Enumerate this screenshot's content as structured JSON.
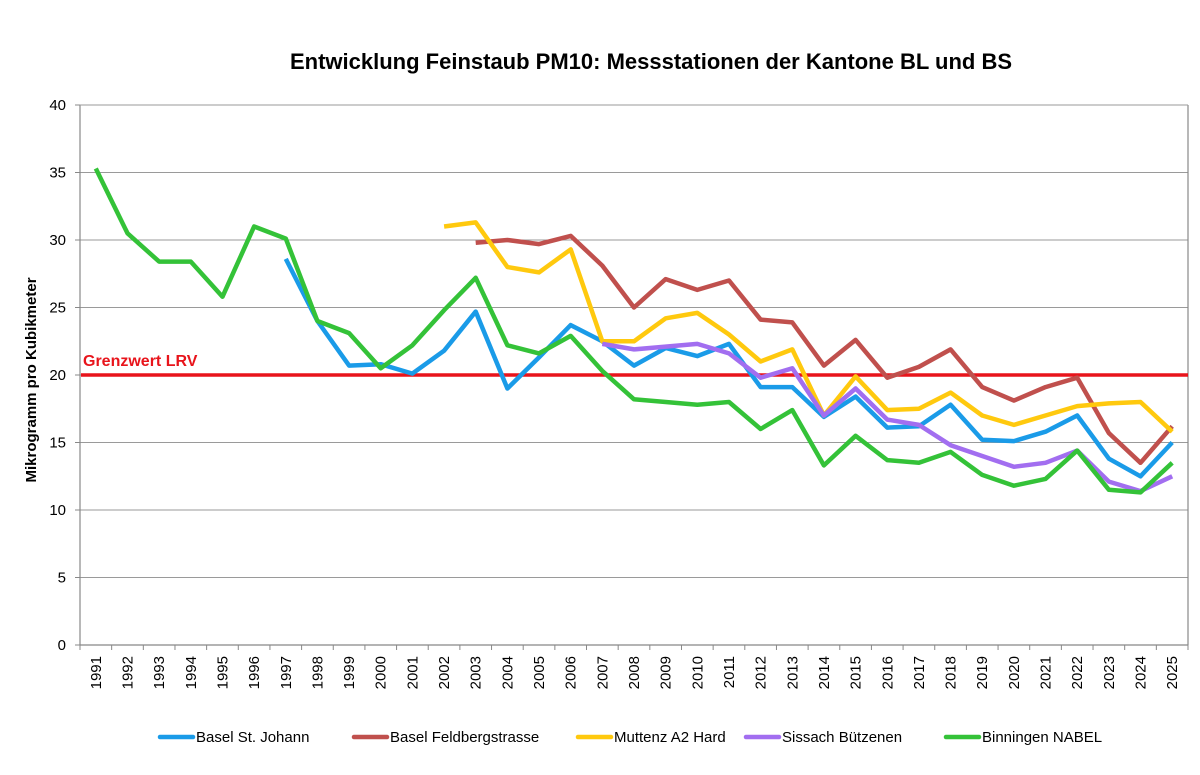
{
  "chart_data": {
    "type": "line",
    "title": "Entwicklung Feinstaub PM10: Messstationen der Kantone BL und BS",
    "xlabel": "",
    "ylabel": "Mikrogramm pro Kubikmeter",
    "ylim": [
      0,
      40
    ],
    "yticks": [
      0,
      5,
      10,
      15,
      20,
      25,
      30,
      35,
      40
    ],
    "ytick_labels": [
      "0",
      "5",
      "10",
      "15",
      "20",
      "25",
      "30",
      "35",
      "40"
    ],
    "grid": true,
    "legend_position": "bottom",
    "categories": [
      "1991",
      "1992",
      "1993",
      "1994",
      "1995",
      "1996",
      "1997",
      "1998",
      "1999",
      "2000",
      "2001",
      "2002",
      "2003",
      "2004",
      "2005",
      "2006",
      "2007",
      "2008",
      "2009",
      "2010",
      "2011",
      "2012",
      "2013",
      "2014",
      "2015",
      "2016",
      "2017",
      "2018",
      "2019",
      "2020",
      "2021",
      "2022",
      "2023",
      "2024",
      "2025"
    ],
    "reference_line": {
      "label": "Grenzwert LRV",
      "value": 20,
      "color": "#e8141b"
    },
    "series": [
      {
        "name": "Basel St. Johann",
        "color": "#1a9be8",
        "values": [
          null,
          null,
          null,
          null,
          null,
          null,
          28.6,
          24.0,
          20.7,
          20.8,
          20.1,
          21.8,
          24.7,
          19.0,
          21.3,
          23.7,
          22.5,
          20.7,
          22.0,
          21.4,
          22.3,
          19.1,
          19.1,
          16.9,
          18.4,
          16.1,
          16.2,
          17.8,
          15.2,
          15.1,
          15.8,
          17.0,
          13.8,
          12.5,
          15.0
        ]
      },
      {
        "name": "Basel Feldbergstrasse",
        "color": "#c0504d",
        "values": [
          null,
          null,
          null,
          null,
          null,
          null,
          null,
          null,
          null,
          null,
          null,
          null,
          29.8,
          30.0,
          29.7,
          30.3,
          28.1,
          25.0,
          27.1,
          26.3,
          27.0,
          24.1,
          23.9,
          20.7,
          22.6,
          19.8,
          20.6,
          21.9,
          19.1,
          18.1,
          19.1,
          19.8,
          15.7,
          13.5,
          16.2
        ]
      },
      {
        "name": "Muttenz A2 Hard",
        "color": "#ffc90e",
        "values": [
          null,
          null,
          null,
          null,
          null,
          null,
          null,
          null,
          null,
          null,
          null,
          31.0,
          31.3,
          28.0,
          27.6,
          29.3,
          22.5,
          22.5,
          24.2,
          24.6,
          23.0,
          21.0,
          21.9,
          17.0,
          19.9,
          17.4,
          17.5,
          18.7,
          17.0,
          16.3,
          17.0,
          17.7,
          17.9,
          18.0,
          15.8
        ]
      },
      {
        "name": "Sissach Bützenen",
        "color": "#a26ef0",
        "values": [
          null,
          null,
          null,
          null,
          null,
          null,
          null,
          null,
          null,
          null,
          null,
          null,
          null,
          null,
          null,
          null,
          22.3,
          21.9,
          22.1,
          22.3,
          21.6,
          19.8,
          20.5,
          17.0,
          19.0,
          16.7,
          16.3,
          14.8,
          14.0,
          13.2,
          13.5,
          14.4,
          12.1,
          11.4,
          12.5
        ]
      },
      {
        "name": "Binningen NABEL",
        "color": "#34c238",
        "values": [
          35.3,
          30.5,
          28.4,
          28.4,
          25.8,
          31.0,
          30.1,
          24.0,
          23.1,
          20.5,
          22.2,
          24.8,
          27.2,
          22.2,
          21.6,
          22.9,
          20.3,
          18.2,
          18.0,
          17.8,
          18.0,
          16.0,
          17.4,
          13.3,
          15.5,
          13.7,
          13.5,
          14.3,
          12.6,
          11.8,
          12.3,
          14.4,
          11.5,
          11.3,
          13.5
        ]
      }
    ]
  }
}
